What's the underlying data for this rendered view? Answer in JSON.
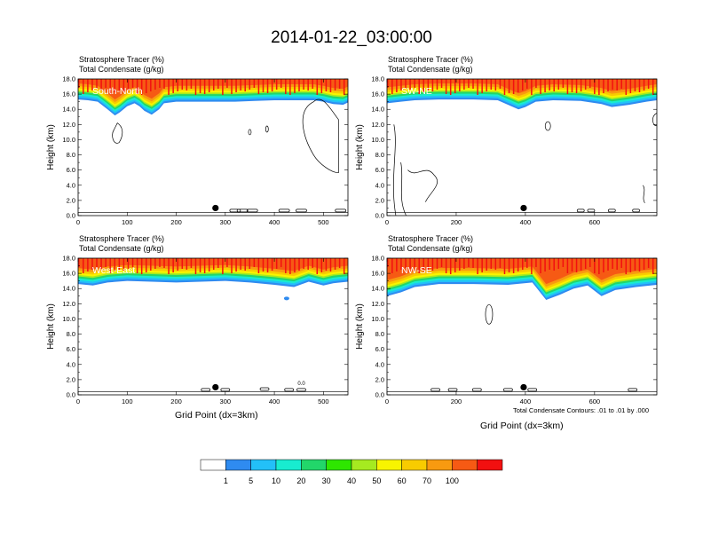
{
  "title": "2014-01-22_03:00:00",
  "footnote": "Total Condensate Contours: .01 to .01 by .000",
  "colorbar": {
    "colors": [
      "#ffffff",
      "#2f8bf0",
      "#23c0f8",
      "#18ecd0",
      "#22d66a",
      "#2ee600",
      "#a6ea20",
      "#f8f400",
      "#f8cc00",
      "#f89a10",
      "#f65a14",
      "#f21010"
    ],
    "labels": [
      "1",
      "5",
      "10",
      "20",
      "30",
      "40",
      "50",
      "60",
      "70",
      "100"
    ]
  },
  "chart_data": [
    {
      "type": "heatmap",
      "panel_label": "South-North",
      "header_line1": "Stratosphere Tracer   (%)",
      "header_line2": "Total Condensate   (g/kg)",
      "ylabel": "Height (km)",
      "xlabel": "",
      "xlim": [
        0,
        550
      ],
      "ylim": [
        0,
        18
      ],
      "xticks": [
        "0",
        "100",
        "200",
        "300",
        "400",
        "500"
      ],
      "xtick_values": [
        0,
        100,
        200,
        300,
        400,
        500
      ],
      "yticks": [
        "0.0",
        "2.0",
        "4.0",
        "6.0",
        "8.0",
        "10.0",
        "12.0",
        "14.0",
        "16.0",
        "18.0"
      ],
      "marker_x": 280,
      "tracer_front": [
        [
          0,
          15.3
        ],
        [
          20,
          15.2
        ],
        [
          40,
          15.0
        ],
        [
          60,
          14.0
        ],
        [
          75,
          13.2
        ],
        [
          85,
          13.6
        ],
        [
          100,
          14.4
        ],
        [
          115,
          14.8
        ],
        [
          125,
          14.4
        ],
        [
          135,
          13.8
        ],
        [
          150,
          13.3
        ],
        [
          165,
          14.0
        ],
        [
          175,
          14.8
        ],
        [
          200,
          15.0
        ],
        [
          240,
          15.0
        ],
        [
          280,
          15.0
        ],
        [
          320,
          15.0
        ],
        [
          360,
          15.1
        ],
        [
          400,
          15.2
        ],
        [
          440,
          15.2
        ],
        [
          480,
          15.2
        ],
        [
          500,
          15.0
        ],
        [
          520,
          14.7
        ],
        [
          540,
          14.6
        ],
        [
          550,
          14.9
        ]
      ]
    },
    {
      "type": "heatmap",
      "panel_label": "SW-NE",
      "header_line1": "Stratosphere Tracer   (%)",
      "header_line2": "Total Condensate   (g/kg)",
      "ylabel": "Height (km)",
      "xlabel": "",
      "xlim": [
        0,
        780
      ],
      "ylim": [
        0,
        18
      ],
      "xticks": [
        "0",
        "200",
        "400",
        "600"
      ],
      "xtick_values": [
        0,
        200,
        400,
        600
      ],
      "yticks": [
        "0.0",
        "2.0",
        "4.0",
        "6.0",
        "8.0",
        "10.0",
        "12.0",
        "14.0",
        "16.0",
        "18.0"
      ],
      "marker_x": 395,
      "tracer_front": [
        [
          0,
          14.8
        ],
        [
          40,
          15.0
        ],
        [
          80,
          15.2
        ],
        [
          150,
          15.3
        ],
        [
          250,
          15.3
        ],
        [
          320,
          15.2
        ],
        [
          350,
          14.6
        ],
        [
          380,
          14.0
        ],
        [
          400,
          14.3
        ],
        [
          430,
          15.0
        ],
        [
          480,
          15.2
        ],
        [
          560,
          15.1
        ],
        [
          620,
          14.7
        ],
        [
          650,
          14.3
        ],
        [
          700,
          14.6
        ],
        [
          750,
          15.0
        ],
        [
          780,
          15.2
        ]
      ]
    },
    {
      "type": "heatmap",
      "panel_label": "West-East",
      "header_line1": "Stratosphere Tracer   (%)",
      "header_line2": "Total Condensate   (g/kg)",
      "ylabel": "Height (km)",
      "xlabel": "Grid Point (dx=3km)",
      "xlim": [
        0,
        550
      ],
      "ylim": [
        0,
        18
      ],
      "xticks": [
        "0",
        "100",
        "200",
        "300",
        "400",
        "500"
      ],
      "xtick_values": [
        0,
        100,
        200,
        300,
        400,
        500
      ],
      "yticks": [
        "0.0",
        "2.0",
        "4.0",
        "6.0",
        "8.0",
        "10.0",
        "12.0",
        "14.0",
        "16.0",
        "18.0"
      ],
      "marker_x": 280,
      "annotation": "0.0",
      "tracer_front": [
        [
          0,
          14.6
        ],
        [
          30,
          14.4
        ],
        [
          60,
          14.8
        ],
        [
          100,
          15.0
        ],
        [
          150,
          14.9
        ],
        [
          200,
          14.8
        ],
        [
          250,
          14.9
        ],
        [
          300,
          15.0
        ],
        [
          350,
          14.8
        ],
        [
          400,
          14.5
        ],
        [
          440,
          14.2
        ],
        [
          470,
          14.9
        ],
        [
          500,
          14.4
        ],
        [
          520,
          14.7
        ],
        [
          550,
          14.9
        ]
      ]
    },
    {
      "type": "heatmap",
      "panel_label": "NW-SE",
      "header_line1": "Stratosphere Tracer   (%)",
      "header_line2": "Total Condensate   (g/kg)",
      "ylabel": "Height (km)",
      "xlabel": "Grid Point (dx=3km)",
      "xlim": [
        0,
        780
      ],
      "ylim": [
        0,
        18
      ],
      "xticks": [
        "0",
        "200",
        "400",
        "600"
      ],
      "xtick_values": [
        0,
        200,
        400,
        600
      ],
      "yticks": [
        "0.0",
        "2.0",
        "4.0",
        "6.0",
        "8.0",
        "10.0",
        "12.0",
        "14.0",
        "16.0",
        "18.0"
      ],
      "marker_x": 395,
      "tracer_front": [
        [
          0,
          13.0
        ],
        [
          40,
          13.5
        ],
        [
          80,
          14.2
        ],
        [
          150,
          14.6
        ],
        [
          250,
          14.6
        ],
        [
          350,
          14.5
        ],
        [
          420,
          14.8
        ],
        [
          460,
          12.5
        ],
        [
          500,
          13.2
        ],
        [
          540,
          14.0
        ],
        [
          580,
          14.4
        ],
        [
          620,
          13.0
        ],
        [
          660,
          13.8
        ],
        [
          720,
          14.2
        ],
        [
          780,
          14.5
        ]
      ]
    }
  ]
}
